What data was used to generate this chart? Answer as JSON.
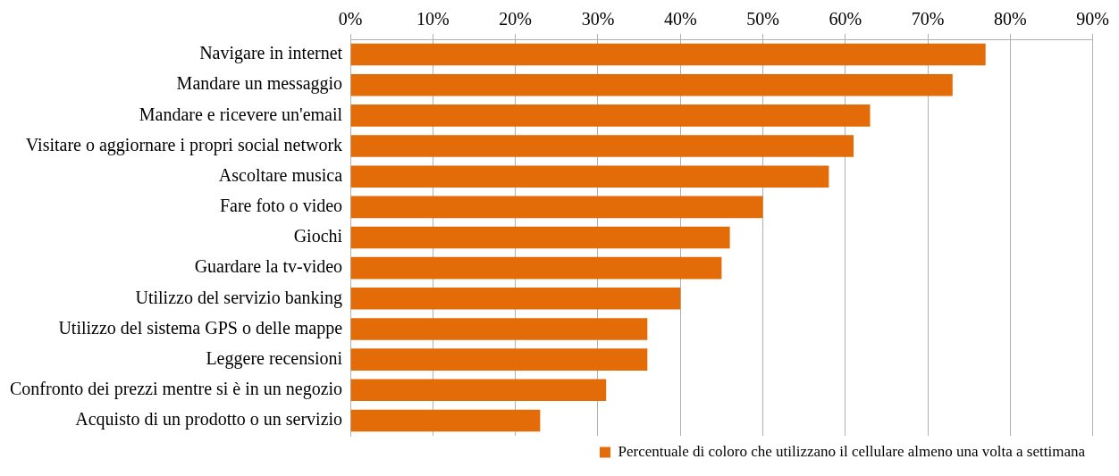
{
  "chart_data": {
    "type": "bar",
    "orientation": "horizontal",
    "categories": [
      "Navigare in internet",
      "Mandare un messaggio",
      "Mandare e ricevere un'email",
      "Visitare o aggiornare i propri social network",
      "Ascoltare musica",
      "Fare foto o video",
      "Giochi",
      "Guardare la tv-video",
      "Utilizzo del servizio banking",
      "Utilizzo del sistema GPS o delle mappe",
      "Leggere recensioni",
      "Confronto dei prezzi mentre si è in un negozio",
      "Acquisto di un prodotto o un servizio"
    ],
    "series": [
      {
        "name": "Percentuale di coloro che utilizzano il cellulare almeno una volta a settimana",
        "color": "#e36c09",
        "values": [
          77,
          73,
          63,
          61,
          58,
          50,
          46,
          45,
          40,
          36,
          36,
          31,
          23
        ]
      }
    ],
    "xlim": [
      0,
      90
    ],
    "xticks": [
      {
        "value": 0,
        "label": "0%"
      },
      {
        "value": 10,
        "label": "10%"
      },
      {
        "value": 20,
        "label": "20%"
      },
      {
        "value": 30,
        "label": "30%"
      },
      {
        "value": 40,
        "label": "40%"
      },
      {
        "value": 50,
        "label": "50%"
      },
      {
        "value": 60,
        "label": "60%"
      },
      {
        "value": 70,
        "label": "70%"
      },
      {
        "value": 80,
        "label": "80%"
      },
      {
        "value": 90,
        "label": "90%"
      }
    ],
    "grid": "x",
    "legend": "bottom"
  }
}
